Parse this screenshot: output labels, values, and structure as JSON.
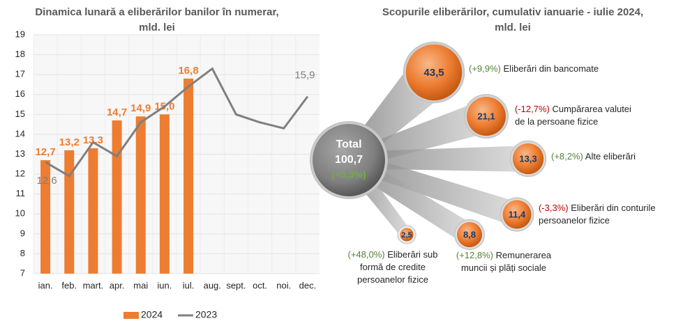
{
  "chart_data": [
    {
      "type": "bar-line",
      "title": [
        "Dinamica lunară a eliberărilor banilor în numerar,",
        "mld. lei"
      ],
      "categories": [
        "ian.",
        "feb.",
        "mart.",
        "apr.",
        "mai",
        "iun.",
        "iul.",
        "aug.",
        "sept.",
        "oct.",
        "noi.",
        "dec."
      ],
      "series": [
        {
          "name": "2024",
          "color": "#ed7d31",
          "kind": "bar",
          "values": [
            12.7,
            13.2,
            13.3,
            14.7,
            14.9,
            15.0,
            16.8,
            null,
            null,
            null,
            null,
            null
          ],
          "value_labels": [
            "12,7",
            "13,2",
            "13,3",
            "14,7",
            "14,9",
            "15,0",
            "16,8",
            null,
            null,
            null,
            null,
            null
          ]
        },
        {
          "name": "2023",
          "color": "#7f7f7f",
          "kind": "line",
          "values": [
            12.6,
            11.9,
            13.6,
            12.9,
            14.6,
            15.4,
            16.4,
            17.3,
            15.0,
            14.6,
            14.3,
            15.9
          ],
          "value_labels": [
            "12,6",
            null,
            null,
            null,
            null,
            null,
            null,
            null,
            null,
            null,
            null,
            "15,9"
          ]
        }
      ],
      "ylim": [
        7,
        19
      ],
      "yticks": [
        7,
        8,
        9,
        10,
        11,
        12,
        13,
        14,
        15,
        16,
        17,
        18,
        19
      ],
      "grid": true
    },
    {
      "type": "bubble",
      "title": [
        "Scopurile eliberărilor, cumulativ ianuarie - iulie 2024,",
        "mld. lei"
      ],
      "total": {
        "label": "Total",
        "value": 100.7,
        "value_label": "100,7",
        "change": "(+3,3%)",
        "change_color": "#70ad47"
      },
      "categories": [
        [
          "Eliberări din bancomate"
        ],
        [
          "Cumpărarea valutei",
          "de la persoane fizice"
        ],
        [
          "Alte eliberări"
        ],
        [
          "Eliberări din conturile",
          "persoanelor fizice"
        ],
        [
          "Remunerarea",
          "muncii și plăți sociale"
        ],
        [
          "Eliberări sub",
          "formă de credite",
          "persoanelor fizice"
        ]
      ],
      "values": [
        43.5,
        21.1,
        13.3,
        11.4,
        8.8,
        2.5
      ],
      "value_labels": [
        "43,5",
        "21,1",
        "13,3",
        "11,4",
        "8,8",
        "2,5"
      ],
      "changes": [
        "(+9,9%)",
        "(-12,7%)",
        "(+8,2%)",
        "(-3,3%)",
        "(+12,8%)",
        "(+48,0%)"
      ],
      "change_colors": [
        "#548235",
        "#c00000",
        "#548235",
        "#c00000",
        "#548235",
        "#548235"
      ],
      "color": "#ed7d31"
    }
  ]
}
